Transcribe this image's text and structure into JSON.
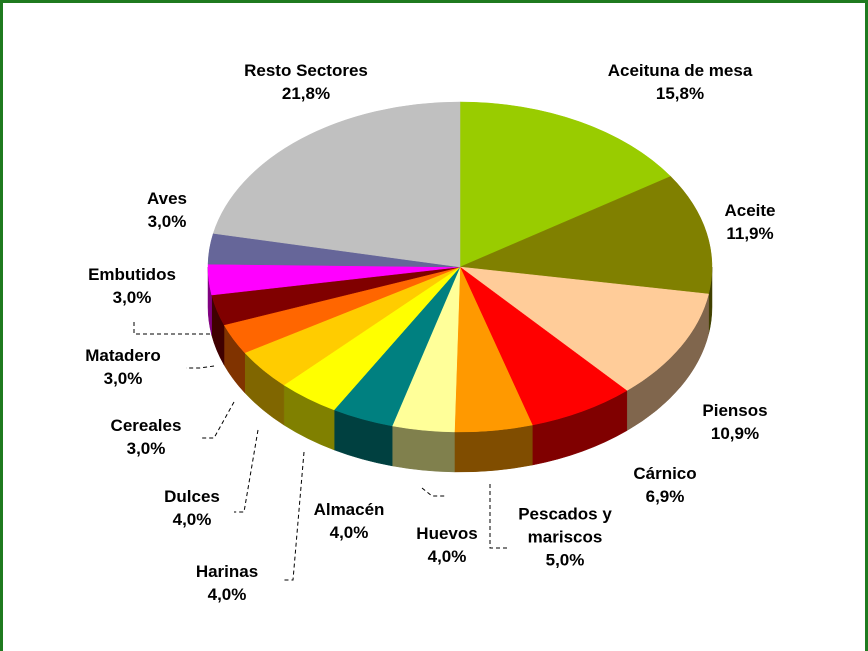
{
  "chart_data": {
    "type": "pie",
    "categories": [
      "Aceituna de mesa",
      "Aceite",
      "Piensos",
      "Cárnico",
      "Pescados y mariscos",
      "Huevos",
      "Almacén",
      "Harinas",
      "Dulces",
      "Cereales",
      "Matadero",
      "Embutidos",
      "Aves",
      "Resto Sectores"
    ],
    "values": [
      15.8,
      11.9,
      10.9,
      6.9,
      5.0,
      4.0,
      4.0,
      4.0,
      4.0,
      3.0,
      3.0,
      3.0,
      3.0,
      21.8
    ],
    "value_labels": [
      "15,8%",
      "11,9%",
      "10,9%",
      "6,9%",
      "5,0%",
      "4,0%",
      "4,0%",
      "4,0%",
      "4,0%",
      "3,0%",
      "3,0%",
      "3,0%",
      "3,0%",
      "21,8%"
    ],
    "colors": [
      "#99cc00",
      "#808000",
      "#ffcc99",
      "#ff0000",
      "#ff9900",
      "#ffff99",
      "#008080",
      "#ffff00",
      "#ffcc00",
      "#ff6600",
      "#800000",
      "#ff00ff",
      "#666699",
      "#c0c0c0"
    ]
  }
}
